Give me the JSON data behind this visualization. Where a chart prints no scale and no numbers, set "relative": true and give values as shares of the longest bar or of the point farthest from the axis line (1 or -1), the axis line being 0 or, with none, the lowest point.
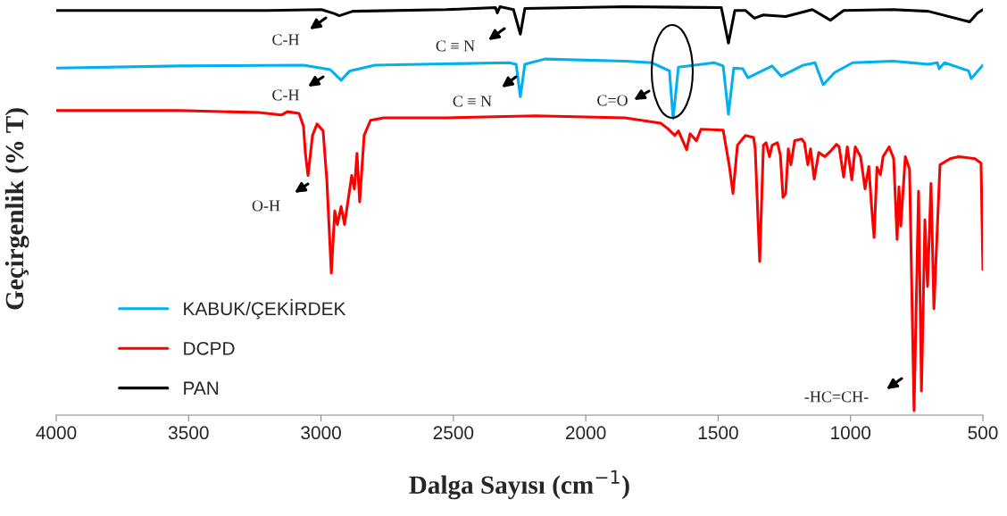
{
  "chart_data": {
    "type": "line",
    "relative": true,
    "xlabel": "Dalga Sayısı (cm$^{−1}$)",
    "ylabel": "Geçirgenlik (% T)",
    "xlim": [
      4000,
      500
    ],
    "xticks": [
      4000,
      3500,
      3000,
      2500,
      2000,
      1500,
      1000,
      500
    ],
    "grid": false,
    "legend": "bottom left",
    "tick_labels": "x",
    "marker": "none",
    "line_style": "solid",
    "series": [
      {
        "name": "KABUK/ÇEKİRDEK",
        "color": "#00b0f0",
        "x": [
          4000,
          3538,
          3066,
          2965,
          2924,
          2891,
          2796,
          2290,
          2263,
          2247,
          2230,
          2155,
          1852,
          1751,
          1684,
          1670,
          1650,
          1515,
          1481,
          1461,
          1441,
          1407,
          1387,
          1346,
          1296,
          1262,
          1178,
          1134,
          1103,
          1060,
          992,
          840,
          706,
          672,
          665,
          645,
          554,
          544,
          500
        ],
        "values": [
          0.85,
          0.855,
          0.857,
          0.846,
          0.82,
          0.843,
          0.857,
          0.863,
          0.859,
          0.78,
          0.859,
          0.872,
          0.867,
          0.863,
          0.843,
          0.726,
          0.852,
          0.863,
          0.855,
          0.737,
          0.85,
          0.848,
          0.826,
          0.839,
          0.855,
          0.83,
          0.857,
          0.863,
          0.809,
          0.839,
          0.863,
          0.867,
          0.859,
          0.863,
          0.848,
          0.863,
          0.843,
          0.824,
          0.857
        ]
      },
      {
        "name": "DCPD",
        "color": "#ff0000",
        "x": [
          4000,
          3538,
          3235,
          3150,
          3127,
          3083,
          3066,
          3059,
          3049,
          3032,
          3015,
          2992,
          2978,
          2961,
          2948,
          2938,
          2924,
          2911,
          2884,
          2874,
          2864,
          2854,
          2837,
          2813,
          2763,
          2526,
          2189,
          1852,
          1717,
          1691,
          1664,
          1650,
          1619,
          1606,
          1582,
          1565,
          1481,
          1457,
          1444,
          1427,
          1397,
          1366,
          1360,
          1343,
          1329,
          1319,
          1306,
          1296,
          1276,
          1265,
          1255,
          1245,
          1235,
          1225,
          1211,
          1184,
          1174,
          1161,
          1151,
          1137,
          1120,
          1097,
          1073,
          1053,
          1043,
          1026,
          1012,
          995,
          982,
          962,
          945,
          931,
          921,
          911,
          900,
          887,
          877,
          854,
          837,
          824,
          817,
          810,
          793,
          777,
          760,
          743,
          732,
          719,
          709,
          696,
          685,
          662,
          624,
          591,
          530,
          507,
          500
        ],
        "values": [
          0.746,
          0.746,
          0.741,
          0.735,
          0.743,
          0.739,
          0.707,
          0.641,
          0.587,
          0.685,
          0.713,
          0.696,
          0.576,
          0.348,
          0.5,
          0.467,
          0.511,
          0.467,
          0.587,
          0.554,
          0.641,
          0.522,
          0.685,
          0.722,
          0.728,
          0.728,
          0.733,
          0.728,
          0.715,
          0.702,
          0.685,
          0.696,
          0.65,
          0.689,
          0.672,
          0.7,
          0.698,
          0.607,
          0.543,
          0.661,
          0.685,
          0.68,
          0.652,
          0.376,
          0.661,
          0.667,
          0.633,
          0.661,
          0.667,
          0.637,
          0.533,
          0.543,
          0.652,
          0.613,
          0.672,
          0.676,
          0.667,
          0.613,
          0.652,
          0.578,
          0.643,
          0.633,
          0.648,
          0.663,
          0.657,
          0.583,
          0.657,
          0.576,
          0.657,
          0.633,
          0.554,
          0.609,
          0.515,
          0.435,
          0.607,
          0.589,
          0.633,
          0.657,
          0.628,
          0.43,
          0.559,
          0.463,
          0.633,
          0.602,
          0.011,
          0.548,
          0.059,
          0.478,
          0.315,
          0.567,
          0.261,
          0.613,
          0.628,
          0.633,
          0.628,
          0.617,
          0.357
        ]
      },
      {
        "name": "PAN",
        "color": "#000000",
        "x": [
          4000,
          3538,
          3201,
          2998,
          2948,
          2931,
          2880,
          2526,
          2341,
          2334,
          2324,
          2273,
          2247,
          2230,
          1852,
          1488,
          1461,
          1437,
          1397,
          1363,
          1329,
          1245,
          1144,
          1076,
          1026,
          840,
          706,
          550,
          520,
          500
        ],
        "values": [
          0.991,
          0.991,
          0.991,
          0.993,
          0.983,
          0.978,
          0.989,
          0.993,
          0.998,
          0.985,
          1.0,
          0.993,
          0.933,
          0.996,
          1.0,
          0.998,
          0.911,
          0.991,
          0.991,
          0.972,
          0.98,
          0.976,
          0.993,
          0.967,
          0.991,
          0.993,
          0.989,
          0.963,
          0.985,
          0.993
        ]
      }
    ],
    "annotations": [
      "C-H",
      "C ≡ N",
      "C-H",
      "C ≡ N",
      "C=O",
      "O-H",
      "-HC=CH-"
    ]
  }
}
